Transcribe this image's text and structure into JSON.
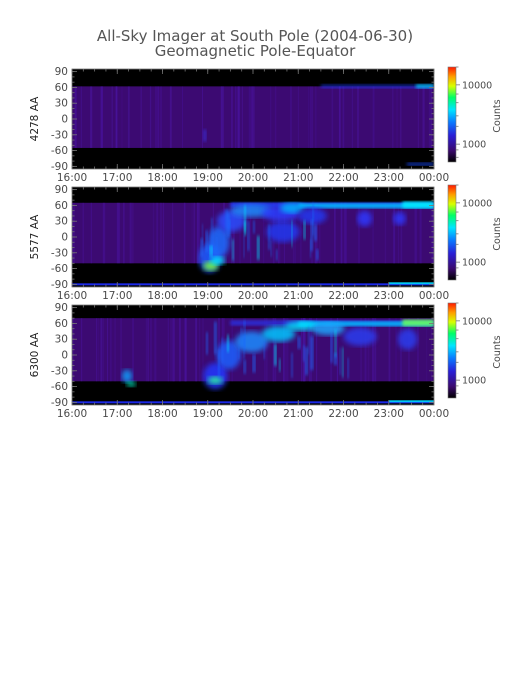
{
  "chart_data": {
    "type": "heatmap",
    "title": "All-Sky Imager at South Pole (2004-06-30)",
    "subtitle": "Geomagnetic Pole-Equator",
    "x_ticks": [
      "16:00",
      "17:00",
      "18:00",
      "19:00",
      "20:00",
      "21:00",
      "22:00",
      "23:00",
      "00:00"
    ],
    "xlim": [
      "16:00",
      "00:00"
    ],
    "y_ticks": [
      90,
      60,
      30,
      0,
      -30,
      -60,
      -90
    ],
    "ylim": [
      -95,
      95
    ],
    "colorbar": {
      "label": "Counts",
      "scale": "log",
      "ticks": [
        10000,
        1000
      ],
      "tick_labels": [
        "10000",
        "1000"
      ],
      "colormap": [
        "#000000",
        "#3b0a6e",
        "#2a1fd6",
        "#0a7bff",
        "#00e5ff",
        "#00ff66",
        "#d8ff00",
        "#ff9c00",
        "#ff1a00"
      ]
    },
    "panels": [
      {
        "ylabel": "4278 AA",
        "clim": [
          500,
          20000
        ],
        "valid_range": [
          -55,
          62
        ],
        "description_series": [
          {
            "name": "high-latitude band",
            "lat_range": [
              60,
              64
            ],
            "counts_level": 1200
          },
          {
            "name": "diffuse background",
            "lat_range": [
              -55,
              60
            ],
            "counts_level": 600
          }
        ]
      },
      {
        "ylabel": "5577 AA",
        "clim": [
          500,
          20000
        ],
        "valid_range": [
          -50,
          65
        ],
        "description_series": [
          {
            "name": "auroral oval",
            "lat_range": [
              55,
              66
            ],
            "counts_level": 3000
          },
          {
            "name": "active arcs 18:45-21:30",
            "lat_range": [
              -50,
              65
            ],
            "counts_level": 2500
          }
        ]
      },
      {
        "ylabel": "6300 AA",
        "clim": [
          500,
          20000
        ],
        "valid_range": [
          -50,
          70
        ],
        "description_series": [
          {
            "name": "auroral oval",
            "lat_range": [
              55,
              70
            ],
            "counts_level": 3500
          },
          {
            "name": "active arcs 18:45-22:00",
            "lat_range": [
              -45,
              65
            ],
            "counts_level": 2800
          }
        ]
      }
    ]
  }
}
